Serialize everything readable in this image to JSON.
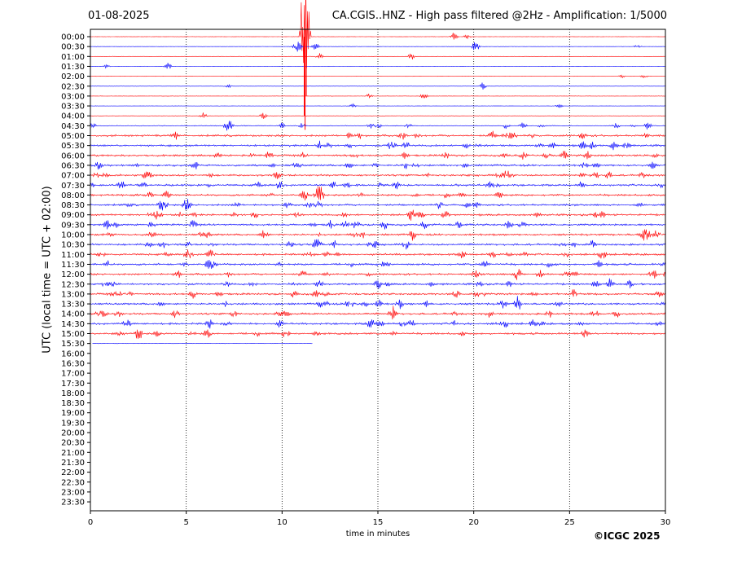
{
  "header": {
    "date": "01-08-2025",
    "title": "CA.CGIS..HNZ - High pass filtered @2Hz - Amplification: 1/5000"
  },
  "footer": {
    "copyright": "©ICGC 2025"
  },
  "chart_data": {
    "type": "line",
    "title": "CA.CGIS..HNZ - High pass filtered @2Hz - Amplification: 1/5000",
    "xlabel": "time in minutes",
    "ylabel": "UTC (local time = UTC + 02:00)",
    "xlim": [
      0,
      30
    ],
    "xticks": [
      0,
      5,
      10,
      15,
      20,
      25,
      30
    ],
    "yticks": [
      "00:00",
      "00:30",
      "01:00",
      "01:30",
      "02:00",
      "02:30",
      "03:00",
      "03:30",
      "04:00",
      "04:30",
      "05:00",
      "05:30",
      "06:00",
      "06:30",
      "07:00",
      "07:30",
      "08:00",
      "08:30",
      "09:00",
      "09:30",
      "10:00",
      "10:30",
      "11:00",
      "11:30",
      "12:00",
      "12:30",
      "13:00",
      "13:30",
      "14:00",
      "14:30",
      "15:00",
      "15:30",
      "16:00",
      "16:30",
      "17:00",
      "17:30",
      "18:00",
      "18:30",
      "19:00",
      "19:30",
      "20:00",
      "20:30",
      "21:00",
      "21:30",
      "22:00",
      "22:30",
      "23:00",
      "23:30"
    ],
    "grid": "vertical dotted at 5-minute intervals",
    "colors": {
      "even_rows": "#ff0000",
      "odd_rows": "#0000ff"
    },
    "trace_count": 32,
    "last_trace_end_minute": 11.6,
    "events": [
      {
        "row": "00:30",
        "minute": 10.8,
        "amplitude": 0.55
      },
      {
        "row": "00:30",
        "minute": 20.1,
        "amplitude": 0.5
      },
      {
        "row": "00:00",
        "minute": 11.2,
        "amplitude": 9.0
      },
      {
        "row": "05:30",
        "minute": 15.7,
        "amplitude": 0.45
      },
      {
        "row": "07:30",
        "minute": 1.6,
        "amplitude": 0.45
      },
      {
        "row": "09:00",
        "minute": 3.5,
        "amplitude": 0.45
      },
      {
        "row": "10:00",
        "minute": 3.2,
        "amplitude": 0.4
      },
      {
        "row": "11:00",
        "minute": 5.1,
        "amplitude": 0.45
      },
      {
        "row": "12:30",
        "minute": 15.0,
        "amplitude": 0.45
      },
      {
        "row": "13:30",
        "minute": 21.5,
        "amplitude": 0.45
      },
      {
        "row": "14:30",
        "minute": 14.6,
        "amplitude": 0.45
      },
      {
        "row": "14:30",
        "minute": 1.9,
        "amplitude": 0.4
      }
    ]
  }
}
